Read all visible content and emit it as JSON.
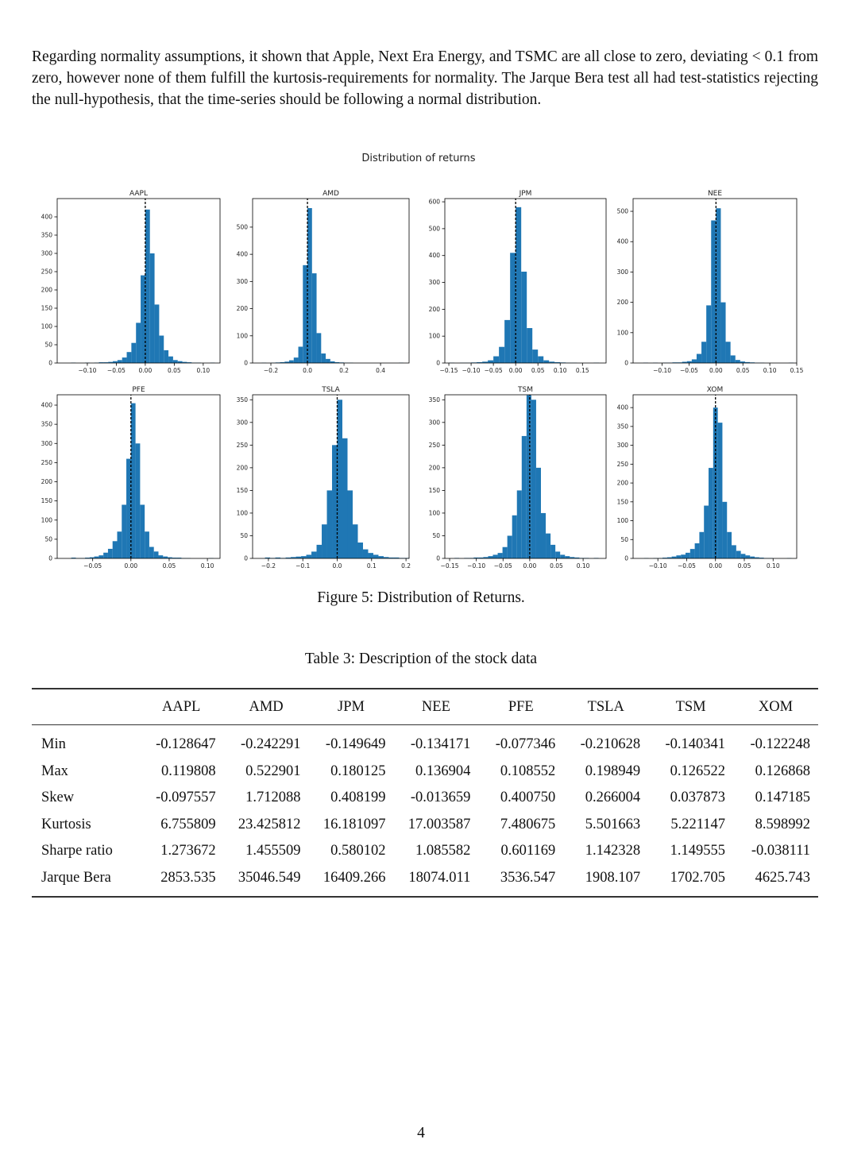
{
  "paragraph": "Regarding normality assumptions, it shown that Apple, Next Era Energy, and TSMC are all close to zero, deviating < 0.1 from zero, however none of them fulfill the kurtosis-requirements for normality. The Jarque Bera test all had test-statistics rejecting the null-hypothesis, that the time-series should be following a normal distribution.",
  "figure_title": "Distribution of returns",
  "chart_data": [
    {
      "type": "histogram",
      "title": "AAPL",
      "color": "#1f77b4",
      "vline": 0,
      "bins": [
        -0.128,
        -0.12,
        -0.112,
        -0.104,
        -0.096,
        -0.088,
        -0.08,
        -0.072,
        -0.064,
        -0.056,
        -0.048,
        -0.04,
        -0.032,
        -0.024,
        -0.016,
        -0.008,
        0,
        0.008,
        0.016,
        0.024,
        0.032,
        0.04,
        0.048,
        0.056,
        0.064,
        0.072,
        0.08,
        0.088,
        0.096,
        0.104,
        0.112,
        0.12
      ],
      "values": [
        1,
        0,
        0,
        1,
        0,
        1,
        2,
        2,
        3,
        5,
        8,
        15,
        30,
        55,
        110,
        240,
        420,
        300,
        160,
        75,
        35,
        18,
        8,
        5,
        3,
        2,
        1,
        1,
        0,
        0,
        1
      ],
      "xlim": [
        -0.152,
        0.129
      ],
      "ylim": [
        0,
        450
      ],
      "xticks": [
        {
          "value": -0.1,
          "label": "−0.10"
        },
        {
          "value": -0.05,
          "label": "−0.05"
        },
        {
          "value": 0,
          "label": "0.00"
        },
        0.05,
        {
          "value": 0.1,
          "label": "0.10"
        }
      ],
      "yticks": [
        0,
        50,
        100,
        150,
        200,
        250,
        300,
        350,
        400
      ]
    },
    {
      "type": "histogram",
      "title": "AMD",
      "color": "#1f77b4",
      "vline": 0,
      "bins": [
        -0.25,
        -0.225,
        -0.2,
        -0.175,
        -0.15,
        -0.125,
        -0.1,
        -0.075,
        -0.05,
        -0.025,
        0,
        0.025,
        0.05,
        0.075,
        0.1,
        0.125,
        0.15,
        0.175,
        0.2,
        0.225,
        0.25,
        0.275,
        0.3,
        0.325,
        0.35,
        0.375,
        0.4,
        0.425,
        0.45,
        0.475,
        0.5,
        0.525
      ],
      "values": [
        1,
        0,
        1,
        2,
        3,
        5,
        10,
        20,
        60,
        360,
        570,
        330,
        110,
        35,
        15,
        6,
        3,
        2,
        1,
        1,
        0,
        0,
        0,
        0,
        0,
        0,
        0,
        0,
        0,
        0,
        1
      ],
      "xlim": [
        -0.3,
        0.556
      ],
      "ylim": [
        0,
        605
      ],
      "xticks": [
        {
          "value": -0.2,
          "label": "−0.2"
        },
        {
          "value": 0,
          "label": "0.0"
        },
        0.2,
        0.4
      ],
      "yticks": [
        0,
        100,
        200,
        300,
        400,
        500
      ]
    },
    {
      "type": "histogram",
      "title": "JPM",
      "color": "#1f77b4",
      "vline": 0,
      "bins": [
        -0.15,
        -0.1375,
        -0.125,
        -0.1125,
        -0.1,
        -0.0875,
        -0.075,
        -0.0625,
        -0.05,
        -0.0375,
        -0.025,
        -0.0125,
        0,
        0.0125,
        0.025,
        0.0375,
        0.05,
        0.0625,
        0.075,
        0.0875,
        0.1,
        0.1125,
        0.125,
        0.1375,
        0.15,
        0.1625,
        0.175,
        0.1875
      ],
      "values": [
        1,
        0,
        1,
        1,
        2,
        3,
        5,
        10,
        25,
        60,
        160,
        410,
        580,
        340,
        130,
        50,
        25,
        10,
        5,
        3,
        2,
        1,
        1,
        0,
        0,
        0,
        1
      ],
      "xlim": [
        -0.159,
        0.203
      ],
      "ylim": [
        0,
        612
      ],
      "xticks": [
        {
          "value": -0.15,
          "label": "−0.15"
        },
        {
          "value": -0.1,
          "label": "−0.10"
        },
        {
          "value": -0.05,
          "label": "−0.05"
        },
        {
          "value": 0,
          "label": "0.00"
        },
        0.05,
        {
          "value": 0.1,
          "label": "0.10"
        },
        0.15
      ],
      "yticks": [
        0,
        100,
        200,
        300,
        400,
        500,
        600
      ]
    },
    {
      "type": "histogram",
      "title": "NEE",
      "color": "#1f77b4",
      "vline": 0,
      "bins": [
        -0.135,
        -0.126,
        -0.117,
        -0.108,
        -0.099,
        -0.09,
        -0.081,
        -0.072,
        -0.063,
        -0.054,
        -0.045,
        -0.036,
        -0.027,
        -0.018,
        -0.009,
        0,
        0.009,
        0.018,
        0.027,
        0.036,
        0.045,
        0.054,
        0.063,
        0.072,
        0.081,
        0.09,
        0.099,
        0.108,
        0.117,
        0.126,
        0.135,
        0.144
      ],
      "values": [
        1,
        0,
        1,
        0,
        1,
        1,
        2,
        2,
        4,
        6,
        12,
        30,
        70,
        190,
        470,
        510,
        200,
        70,
        25,
        10,
        5,
        3,
        2,
        1,
        1,
        0,
        0,
        0,
        0,
        0,
        1
      ],
      "xlim": [
        -0.154,
        0.15
      ],
      "ylim": [
        0,
        542
      ],
      "xticks": [
        {
          "value": -0.1,
          "label": "−0.10"
        },
        {
          "value": -0.05,
          "label": "−0.05"
        },
        {
          "value": 0,
          "label": "0.00"
        },
        0.05,
        {
          "value": 0.1,
          "label": "0.10"
        },
        0.15
      ],
      "yticks": [
        0,
        100,
        200,
        300,
        400,
        500
      ]
    },
    {
      "type": "histogram",
      "title": "PFE",
      "color": "#1f77b4",
      "vline": 0,
      "bins": [
        -0.078,
        -0.072,
        -0.066,
        -0.06,
        -0.054,
        -0.048,
        -0.042,
        -0.036,
        -0.03,
        -0.024,
        -0.018,
        -0.012,
        -0.006,
        0,
        0.006,
        0.012,
        0.018,
        0.024,
        0.03,
        0.036,
        0.042,
        0.048,
        0.054,
        0.06,
        0.066,
        0.072,
        0.078,
        0.084,
        0.09,
        0.096,
        0.102,
        0.108
      ],
      "values": [
        2,
        1,
        1,
        2,
        3,
        5,
        8,
        15,
        25,
        45,
        70,
        140,
        260,
        405,
        300,
        140,
        70,
        30,
        18,
        8,
        5,
        3,
        2,
        2,
        1,
        1,
        0,
        0,
        0,
        0,
        1
      ],
      "xlim": [
        -0.0964,
        0.1165
      ],
      "ylim": [
        0,
        427
      ],
      "xticks": [
        {
          "value": -0.05,
          "label": "−0.05"
        },
        {
          "value": 0,
          "label": "0.00"
        },
        0.05,
        {
          "value": 0.1,
          "label": "0.10"
        }
      ],
      "yticks": [
        0,
        50,
        100,
        150,
        200,
        250,
        300,
        350,
        400
      ]
    },
    {
      "type": "histogram",
      "title": "TSLA",
      "color": "#1f77b4",
      "vline": 0,
      "bins": [
        -0.21,
        -0.195,
        -0.18,
        -0.165,
        -0.15,
        -0.135,
        -0.12,
        -0.105,
        -0.09,
        -0.075,
        -0.06,
        -0.045,
        -0.03,
        -0.015,
        0,
        0.015,
        0.03,
        0.045,
        0.06,
        0.075,
        0.09,
        0.105,
        0.12,
        0.135,
        0.15,
        0.165,
        0.18,
        0.195,
        0.21
      ],
      "values": [
        2,
        1,
        2,
        1,
        2,
        3,
        4,
        5,
        8,
        15,
        30,
        75,
        150,
        250,
        350,
        265,
        150,
        75,
        35,
        20,
        12,
        8,
        5,
        3,
        2,
        2,
        1,
        1
      ],
      "xlim": [
        -0.246,
        0.209
      ],
      "ylim": [
        0,
        361
      ],
      "xticks": [
        {
          "value": -0.2,
          "label": "−0.2"
        },
        {
          "value": -0.1,
          "label": "−0.1"
        },
        {
          "value": 0,
          "label": "0.0"
        },
        0.1,
        0.2
      ],
      "yticks": [
        0,
        50,
        100,
        150,
        200,
        250,
        300,
        350
      ]
    },
    {
      "type": "histogram",
      "title": "TSM",
      "color": "#1f77b4",
      "vline": 0,
      "bins": [
        -0.141,
        -0.132,
        -0.123,
        -0.114,
        -0.105,
        -0.096,
        -0.087,
        -0.078,
        -0.069,
        -0.06,
        -0.051,
        -0.042,
        -0.033,
        -0.024,
        -0.015,
        -0.006,
        0.003,
        0.012,
        0.021,
        0.03,
        0.039,
        0.048,
        0.057,
        0.066,
        0.075,
        0.084,
        0.093,
        0.102,
        0.111,
        0.12,
        0.129
      ],
      "values": [
        1,
        0,
        1,
        1,
        2,
        2,
        3,
        5,
        8,
        12,
        25,
        50,
        95,
        150,
        270,
        360,
        350,
        200,
        100,
        55,
        30,
        15,
        8,
        5,
        3,
        2,
        1,
        1,
        0,
        1
      ],
      "xlim": [
        -0.159,
        0.143
      ],
      "ylim": [
        0,
        361
      ],
      "xticks": [
        {
          "value": -0.15,
          "label": "−0.15"
        },
        {
          "value": -0.1,
          "label": "−0.10"
        },
        {
          "value": -0.05,
          "label": "−0.05"
        },
        {
          "value": 0,
          "label": "0.00"
        },
        0.05,
        {
          "value": 0.1,
          "label": "0.10"
        }
      ],
      "yticks": [
        0,
        50,
        100,
        150,
        200,
        250,
        300,
        350
      ]
    },
    {
      "type": "histogram",
      "title": "XOM",
      "color": "#1f77b4",
      "vline": 0,
      "bins": [
        -0.124,
        -0.116,
        -0.108,
        -0.1,
        -0.092,
        -0.084,
        -0.076,
        -0.068,
        -0.06,
        -0.052,
        -0.044,
        -0.036,
        -0.028,
        -0.02,
        -0.012,
        -0.004,
        0.004,
        0.012,
        0.02,
        0.028,
        0.036,
        0.044,
        0.052,
        0.06,
        0.068,
        0.076,
        0.084,
        0.092,
        0.1,
        0.108,
        0.116,
        0.124,
        0.132
      ],
      "values": [
        1,
        0,
        1,
        1,
        2,
        3,
        5,
        8,
        10,
        15,
        25,
        40,
        70,
        140,
        240,
        400,
        360,
        150,
        70,
        35,
        20,
        12,
        8,
        5,
        3,
        2,
        1,
        1,
        0,
        0,
        0,
        1
      ],
      "xlim": [
        -0.143,
        0.141
      ],
      "ylim": [
        0,
        434
      ],
      "xticks": [
        {
          "value": -0.1,
          "label": "−0.10"
        },
        {
          "value": -0.05,
          "label": "−0.05"
        },
        {
          "value": 0,
          "label": "0.00"
        },
        0.05,
        {
          "value": 0.1,
          "label": "0.10"
        }
      ],
      "yticks": [
        0,
        50,
        100,
        150,
        200,
        250,
        300,
        350,
        400
      ]
    }
  ],
  "figure_caption": "Figure 5: Distribution of Returns.",
  "table": {
    "caption": "Table 3: Description of the stock data",
    "columns": [
      "AAPL",
      "AMD",
      "JPM",
      "NEE",
      "PFE",
      "TSLA",
      "TSM",
      "XOM"
    ],
    "rows": [
      {
        "label": "Min",
        "values": [
          "-0.128647",
          "-0.242291",
          "-0.149649",
          "-0.134171",
          "-0.077346",
          "-0.210628",
          "-0.140341",
          "-0.122248"
        ]
      },
      {
        "label": "Max",
        "values": [
          "0.119808",
          "0.522901",
          "0.180125",
          "0.136904",
          "0.108552",
          "0.198949",
          "0.126522",
          "0.126868"
        ]
      },
      {
        "label": "Skew",
        "values": [
          "-0.097557",
          "1.712088",
          "0.408199",
          "-0.013659",
          "0.400750",
          "0.266004",
          "0.037873",
          "0.147185"
        ]
      },
      {
        "label": "Kurtosis",
        "values": [
          "6.755809",
          "23.425812",
          "16.181097",
          "17.003587",
          "7.480675",
          "5.501663",
          "5.221147",
          "8.598992"
        ]
      },
      {
        "label": "Sharpe ratio",
        "values": [
          "1.273672",
          "1.455509",
          "0.580102",
          "1.085582",
          "0.601169",
          "1.142328",
          "1.149555",
          "-0.038111"
        ]
      },
      {
        "label": "Jarque Bera",
        "values": [
          "2853.535",
          "35046.549",
          "16409.266",
          "18074.011",
          "3536.547",
          "1908.107",
          "1702.705",
          "4625.743"
        ]
      }
    ]
  },
  "page_number": "4"
}
